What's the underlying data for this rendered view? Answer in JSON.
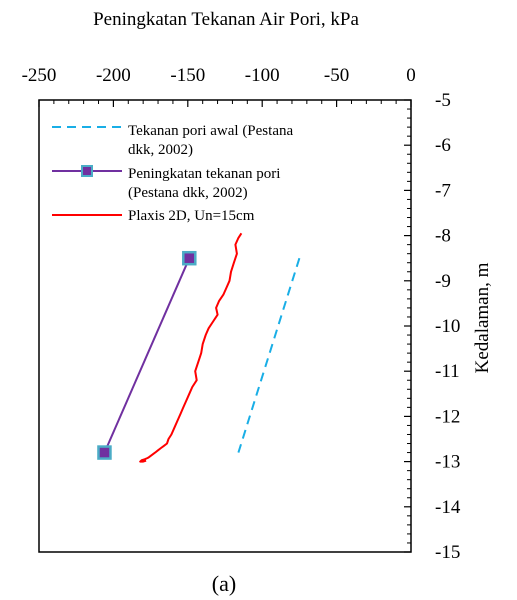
{
  "chart_data": {
    "type": "line",
    "title": "",
    "xlabel": "Peningkatan Tekanan Air Pori, kPa",
    "ylabel": "Kedalaman, m",
    "caption": "(a)",
    "xlim": [
      -250,
      0
    ],
    "ylim": [
      -15,
      -5
    ],
    "x_ticks": [
      -250,
      -200,
      -150,
      -100,
      -50,
      0
    ],
    "y_ticks": [
      -5,
      -6,
      -7,
      -8,
      -9,
      -10,
      -11,
      -12,
      -13,
      -14,
      -15
    ],
    "x_axis_position": "top",
    "y_axis_position": "right",
    "grid": false,
    "legend_position": "top-left",
    "series": [
      {
        "name": "Tekanan pori awal (Pestana dkk, 2002)",
        "style": "dashed",
        "color": "#19aee6",
        "x": [
          -75,
          -116
        ],
        "y": [
          -8.5,
          -12.8
        ]
      },
      {
        "name": "Peningkatan tekanan pori (Pestana dkk, 2002)",
        "style": "solid-marker",
        "color": "#7030a0",
        "marker_fill": "#7030a0",
        "marker_edge": "#4bacc6",
        "x": [
          -149,
          -206
        ],
        "y": [
          -8.5,
          -12.8
        ]
      },
      {
        "name": "Plaxis 2D, Un=15cm",
        "style": "solid",
        "color": "#ff0000",
        "x": [
          -114,
          -116,
          -118,
          -117,
          -119,
          -121,
          -122,
          -124,
          -126,
          -129,
          -131,
          -130,
          -133,
          -136,
          -138,
          -140,
          -141,
          -143,
          -145,
          -144,
          -147,
          -149,
          -151,
          -153,
          -155,
          -157,
          -159,
          -161,
          -163,
          -164,
          -166,
          -168,
          -170,
          -172,
          -174,
          -176,
          -177,
          -179,
          -181,
          -182,
          -180,
          -178
        ],
        "y": [
          -7.95,
          -8.05,
          -8.2,
          -8.4,
          -8.6,
          -8.8,
          -9.0,
          -9.15,
          -9.3,
          -9.45,
          -9.6,
          -9.75,
          -9.9,
          -10.05,
          -10.2,
          -10.4,
          -10.6,
          -10.8,
          -11.0,
          -11.2,
          -11.35,
          -11.5,
          -11.65,
          -11.8,
          -11.95,
          -12.1,
          -12.25,
          -12.4,
          -12.5,
          -12.6,
          -12.65,
          -12.7,
          -12.75,
          -12.8,
          -12.85,
          -12.9,
          -12.92,
          -12.95,
          -12.97,
          -13.0,
          -13.0,
          -12.98
        ]
      }
    ]
  }
}
